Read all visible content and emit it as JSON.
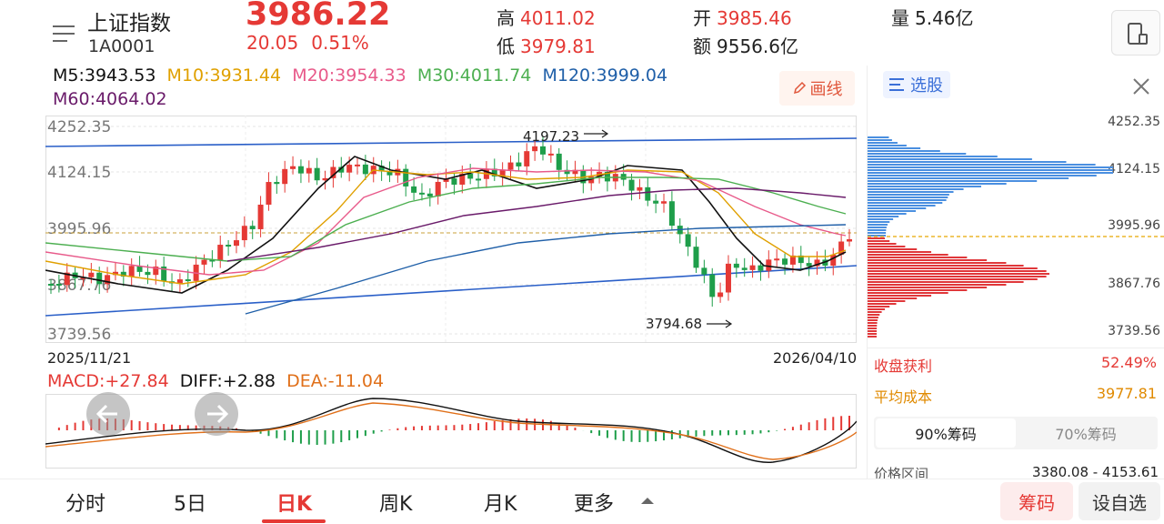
{
  "header": {
    "name": "上证指数",
    "code": "1A0001",
    "price": "3986.22",
    "change": "20.05",
    "change_pct": "0.51%",
    "high_label": "高",
    "high": "4011.02",
    "low_label": "低",
    "low": "3979.81",
    "open_label": "开",
    "open": "3985.46",
    "amount_label": "额",
    "amount": "9556.6亿",
    "volume_label": "量",
    "volume": "5.46亿"
  },
  "ma": {
    "m5": "M5:3943.53",
    "m10": "M10:3931.44",
    "m20": "M20:3954.33",
    "m30": "M30:4011.74",
    "m120": "M120:3999.04",
    "m60": "M60:4064.02",
    "draw_label": "画线"
  },
  "kline": {
    "y_ticks": [
      "4252.35",
      "4124.15",
      "3995.96",
      "3867.76",
      "3739.56"
    ],
    "high_marker": "4197.23",
    "low_marker": "3794.68",
    "start_date": "2025/11/21",
    "end_date": "2026/04/10"
  },
  "macd": {
    "macd": "MACD:+27.84",
    "diff": "DIFF:+2.88",
    "dea": "DEA:-11.04"
  },
  "panel": {
    "xuangu_label": "选股",
    "price_ticks": [
      "4252.35",
      "4124.15",
      "3995.96",
      "3867.76",
      "3739.56"
    ],
    "profit_label": "收盘获利",
    "profit_value": "52.49%",
    "avg_cost_label": "平均成本",
    "avg_cost_value": "3977.81",
    "chip90_label": "90%筹码",
    "chip70_label": "70%筹码",
    "price_range_label": "价格区间",
    "price_range_value": "3380.08 - 4153.61"
  },
  "tabs": [
    "分时",
    "5日",
    "日K",
    "周K",
    "月K",
    "更多"
  ],
  "bottom_buttons": {
    "chips": "筹码",
    "custom": "设自选"
  },
  "colors": {
    "up": "#e53935",
    "down": "#1e9e4a",
    "ma5": "#111111",
    "ma10": "#e0a000",
    "ma20": "#e85a8a",
    "ma30": "#4caf50",
    "ma60": "#6a1b6a",
    "ma120": "#1f5fa8",
    "trend": "#2a5fc8"
  }
}
